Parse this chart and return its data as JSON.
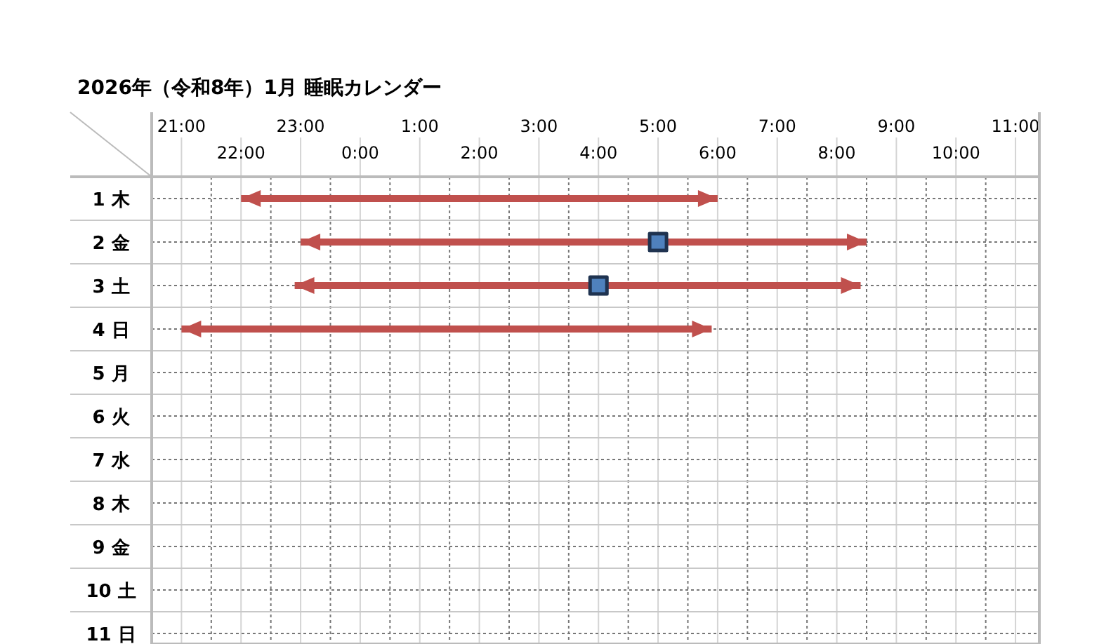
{
  "chart_data": {
    "type": "line",
    "title": "2026年（令和8年）1月 睡眠カレンダー",
    "xlim": [
      "2026-01-01T20:30",
      "2026-01-02T11:24"
    ],
    "xticks": [
      {
        "value": "2026-01-01T21:30",
        "label": null
      },
      {
        "value": "2026-01-01T22:00",
        "label": "22:00"
      },
      {
        "value": "2026-01-01T22:30",
        "label": null
      },
      {
        "value": "2026-01-01T23:30",
        "label": null
      },
      {
        "value": "2026-01-02T00:00",
        "label": "0:00"
      },
      {
        "value": "2026-01-02T00:30",
        "label": null
      },
      {
        "value": "2026-01-02T01:30",
        "label": null
      },
      {
        "value": "2026-01-02T02:00",
        "label": "2:00"
      },
      {
        "value": "2026-01-02T02:30",
        "label": null
      },
      {
        "value": "2026-01-02T03:30",
        "label": null
      },
      {
        "value": "2026-01-02T04:00",
        "label": "4:00"
      },
      {
        "value": "2026-01-02T04:30",
        "label": null
      },
      {
        "value": "2026-01-02T05:30",
        "label": null
      },
      {
        "value": "2026-01-02T06:00",
        "label": "6:00"
      },
      {
        "value": "2026-01-02T06:30",
        "label": null
      },
      {
        "value": "2026-01-02T07:30",
        "label": null
      },
      {
        "value": "2026-01-02T08:00",
        "label": "8:00"
      },
      {
        "value": "2026-01-02T08:30",
        "label": null
      },
      {
        "value": "2026-01-02T09:30",
        "label": null
      },
      {
        "value": "2026-01-02T10:00",
        "label": "10:00"
      },
      {
        "value": "2026-01-02T10:30",
        "label": null
      }
    ],
    "x2lim": [
      "2026-01-01T20:30",
      "2026-01-02T11:24"
    ],
    "x2ticks": [
      {
        "value": "2026-01-01T21:00",
        "label": "21:00"
      },
      {
        "value": "2026-01-01T23:00",
        "label": "23:00"
      },
      {
        "value": "2026-01-02T01:00",
        "label": "1:00"
      },
      {
        "value": "2026-01-02T03:00",
        "label": "3:00"
      },
      {
        "value": "2026-01-02T05:00",
        "label": "5:00"
      },
      {
        "value": "2026-01-02T07:00",
        "label": "7:00"
      },
      {
        "value": "2026-01-02T09:00",
        "label": "9:00"
      },
      {
        "value": "2026-01-02T11:00",
        "label": "11:00"
      }
    ],
    "ylim": [
      11.24,
      0.5
    ],
    "yticks": [
      {
        "value": 1,
        "label": "1 木"
      },
      {
        "value": 1.5,
        "label": null
      },
      {
        "value": 2,
        "label": "2 金"
      },
      {
        "value": 2.5,
        "label": null
      },
      {
        "value": 3,
        "label": "3 土"
      },
      {
        "value": 3.5,
        "label": null
      },
      {
        "value": 4,
        "label": "4 日"
      },
      {
        "value": 4.5,
        "label": null
      },
      {
        "value": 5,
        "label": "5 月"
      },
      {
        "value": 5.5,
        "label": null
      },
      {
        "value": 6,
        "label": "6 火"
      },
      {
        "value": 6.5,
        "label": null
      },
      {
        "value": 7,
        "label": "7 水"
      },
      {
        "value": 7.5,
        "label": null
      },
      {
        "value": 8,
        "label": "8 木"
      },
      {
        "value": 8.5,
        "label": null
      },
      {
        "value": 9,
        "label": "9 金"
      },
      {
        "value": 9.5,
        "label": null
      },
      {
        "value": 10,
        "label": "10 土"
      },
      {
        "value": 10.5,
        "label": null
      },
      {
        "value": 11,
        "label": "11 日"
      }
    ],
    "grid": true,
    "marker": "none",
    "line_style": "solid",
    "series": [
      {
        "color": "#c0504d",
        "x": [
          "2026-01-01T22:00",
          "2026-01-02T06:00"
        ],
        "values": [
          1,
          1
        ]
      },
      {
        "color": "#c0504d",
        "x": [
          "2026-01-01T23:00",
          "2026-01-02T08:30"
        ],
        "values": [
          2,
          2
        ]
      },
      {
        "color": "#c0504d",
        "x": [
          "2026-01-01T22:54",
          "2026-01-02T08:24"
        ],
        "values": [
          3,
          3
        ]
      },
      {
        "color": "#c0504d",
        "x": [
          "2026-01-01T21:00",
          "2026-01-02T05:54"
        ],
        "values": [
          4,
          4
        ]
      },
      {
        "type": "scatter",
        "marker": "square",
        "color": "#4f81bd",
        "x": [
          "2026-01-02T05:00",
          "2026-01-02T04:00"
        ],
        "values": [
          2,
          3
        ]
      }
    ]
  }
}
